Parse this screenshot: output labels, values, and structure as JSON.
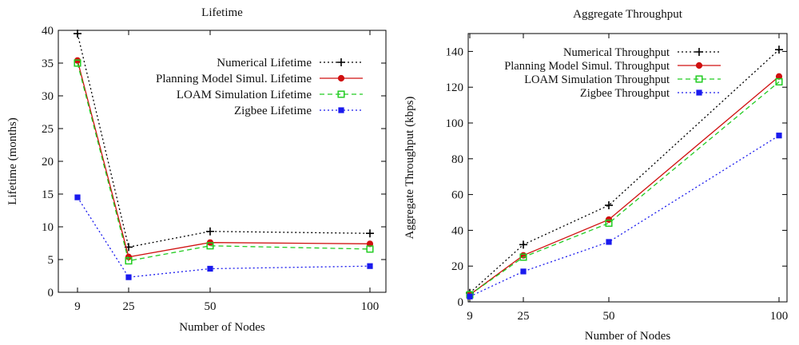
{
  "chart_data": [
    {
      "type": "line",
      "title": "Lifetime",
      "xlabel": "Number of Nodes",
      "ylabel": "Lifetime (months)",
      "x": [
        9,
        25,
        50,
        100
      ],
      "xticks": [
        "9",
        "25",
        "50",
        "100"
      ],
      "ylim": [
        0,
        40
      ],
      "yticks": [
        "0",
        "5",
        "10",
        "15",
        "20",
        "25",
        "30",
        "35",
        "40"
      ],
      "legend_position": "top-right",
      "series": [
        {
          "name": "Numerical Lifetime",
          "values": [
            39.5,
            6.9,
            9.3,
            9.0
          ],
          "color": "#000000",
          "marker": "plus",
          "dash": "dotted"
        },
        {
          "name": "Planning Model Simul. Lifetime",
          "values": [
            35.4,
            5.4,
            7.6,
            7.4
          ],
          "color": "#d01010",
          "marker": "circle",
          "dash": "solid"
        },
        {
          "name": "LOAM Simulation Lifetime",
          "values": [
            35.0,
            4.8,
            7.1,
            6.6
          ],
          "color": "#22cc22",
          "marker": "open-square",
          "dash": "dashed"
        },
        {
          "name": "Zigbee Lifetime",
          "values": [
            14.5,
            2.3,
            3.6,
            4.0
          ],
          "color": "#1a1aee",
          "marker": "square",
          "dash": "dotted"
        }
      ]
    },
    {
      "type": "line",
      "title": "Aggregate Throughput",
      "xlabel": "Number of Nodes",
      "ylabel": "Aggregate Throughput (kbps)",
      "x": [
        9,
        25,
        50,
        100
      ],
      "xticks": [
        "9",
        "25",
        "50",
        "100"
      ],
      "ylim": [
        0,
        150
      ],
      "yticks": [
        "0",
        "20",
        "40",
        "60",
        "80",
        "100",
        "120",
        "140"
      ],
      "legend_position": "top-right",
      "series": [
        {
          "name": "Numerical Throughput",
          "values": [
            5,
            32,
            54,
            141
          ],
          "color": "#000000",
          "marker": "plus",
          "dash": "dotted"
        },
        {
          "name": "Planning Model Simul. Throughput",
          "values": [
            4,
            26,
            46,
            126
          ],
          "color": "#d01010",
          "marker": "circle",
          "dash": "solid"
        },
        {
          "name": "LOAM Simulation Throughput",
          "values": [
            4,
            25,
            44,
            123
          ],
          "color": "#22cc22",
          "marker": "open-square",
          "dash": "dashed"
        },
        {
          "name": "Zigbee Throughput",
          "values": [
            3,
            17,
            33.5,
            93
          ],
          "color": "#1a1aee",
          "marker": "square",
          "dash": "dotted"
        }
      ]
    }
  ]
}
